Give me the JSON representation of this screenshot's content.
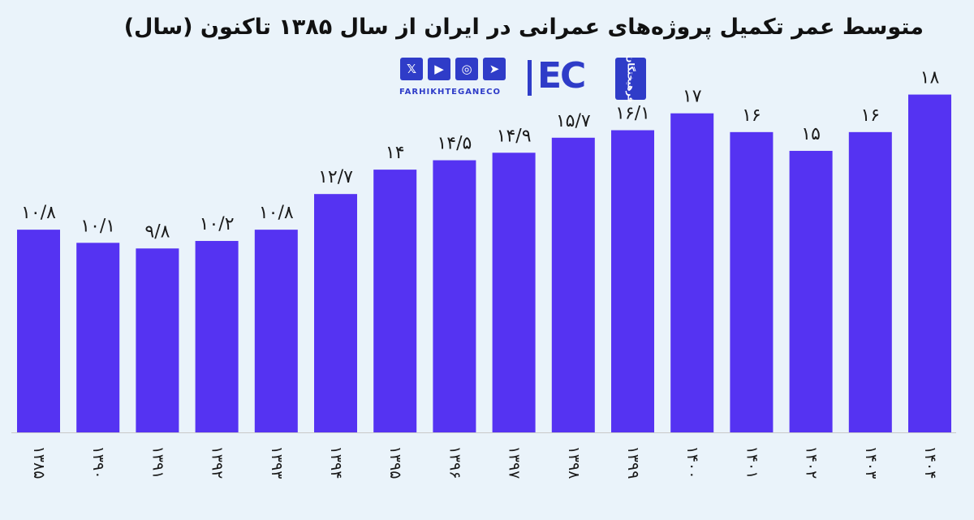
{
  "colors": {
    "bar": "#5533f2",
    "background": "#eaf3fa",
    "brand": "#2f3cc8"
  },
  "brand": {
    "social_icons": [
      "x-icon",
      "youtube-icon",
      "instagram-icon",
      "telegram-icon"
    ],
    "x_glyph": "𝕏",
    "youtube_glyph": "▶",
    "instagram_glyph": "◎",
    "telegram_glyph": "➤",
    "handle": "FARHIKHTEGANECO",
    "iec": "EC",
    "seal_text": "فرهیختگان"
  },
  "chart_data": {
    "type": "bar",
    "title": "متوسط عمر تکمیل پروژه‌های عمرانی در ایران از سال ۱۳۸۵ تاکنون (سال)",
    "xlabel": "",
    "ylabel": "",
    "ylim": [
      0,
      18.5
    ],
    "grid": false,
    "legend": "none",
    "categories": [
      "۱۳۸۵",
      "۱۳۹۰",
      "۱۳۹۱",
      "۱۳۹۲",
      "۱۳۹۳",
      "۱۳۹۴",
      "۱۳۹۵",
      "۱۳۹۶",
      "۱۳۹۷",
      "۱۳۹۸",
      "۱۳۹۹",
      "۱۴۰۰",
      "۱۴۰۱",
      "۱۴۰۲",
      "۱۴۰۳",
      "۱۴۰۴"
    ],
    "values": [
      10.8,
      10.1,
      9.8,
      10.2,
      10.8,
      12.7,
      14,
      14.5,
      14.9,
      15.7,
      16.1,
      17,
      16,
      15,
      16,
      18
    ],
    "data_labels": [
      "۱۰/۸",
      "۱۰/۱",
      "۹/۸",
      "۱۰/۲",
      "۱۰/۸",
      "۱۲/۷",
      "۱۴",
      "۱۴/۵",
      "۱۴/۹",
      "۱۵/۷",
      "۱۶/۱",
      "۱۷",
      "۱۶",
      "۱۵",
      "۱۶",
      "۱۸"
    ]
  }
}
